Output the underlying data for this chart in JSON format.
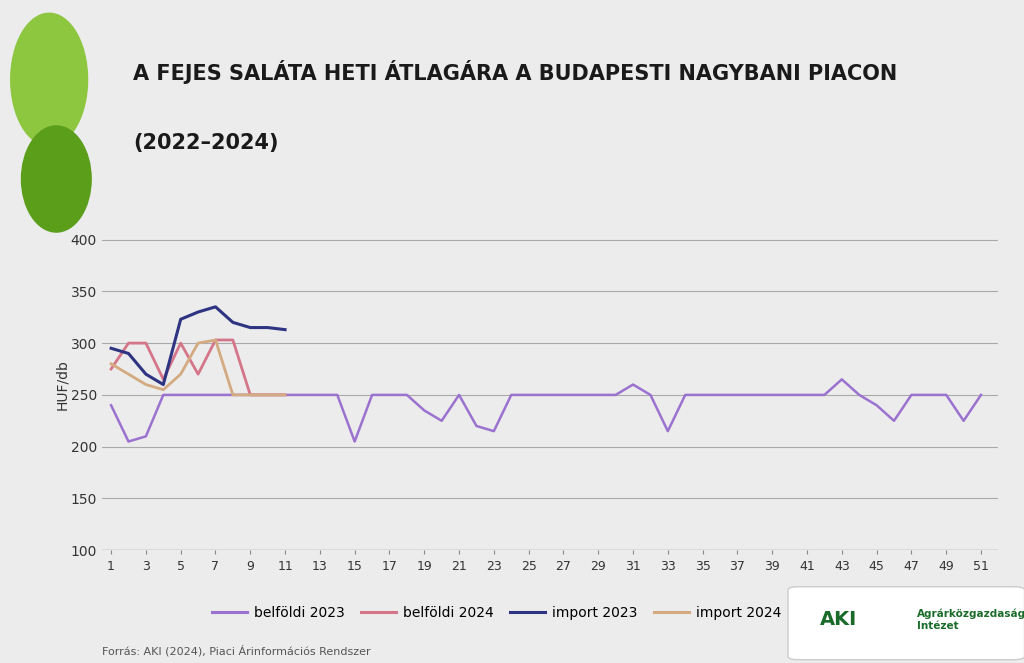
{
  "title_line1": "A FEJES SALÁTA HETI ÁTLAGÁRA A BUDAPESTI NAGYBANI PIACON",
  "title_line2": "(2022–2024)",
  "ylabel": "HUF/db",
  "source": "Forrás: AKI (2024), Piaci Árinformációs Rendszer",
  "background_color": "#ececec",
  "plot_bg_color": "#ececec",
  "accent_color": "#8dc63f",
  "circle1_color": "#8dc63f",
  "circle2_color": "#5a9e1a",
  "ylim": [
    100,
    420
  ],
  "yticks": [
    100,
    150,
    200,
    250,
    300,
    350,
    400
  ],
  "xticks": [
    1,
    3,
    5,
    7,
    9,
    11,
    13,
    15,
    17,
    19,
    21,
    23,
    25,
    27,
    29,
    31,
    33,
    35,
    37,
    39,
    41,
    43,
    45,
    47,
    49,
    51
  ],
  "series": {
    "belfoldi_2023": {
      "label": "belföldi 2023",
      "color": "#9b72cf",
      "linewidth": 1.8,
      "weeks": [
        1,
        2,
        3,
        4,
        5,
        6,
        7,
        8,
        9,
        10,
        11,
        12,
        13,
        14,
        15,
        16,
        17,
        18,
        19,
        20,
        21,
        22,
        23,
        24,
        25,
        26,
        27,
        28,
        29,
        30,
        31,
        32,
        33,
        34,
        35,
        36,
        37,
        38,
        39,
        40,
        41,
        42,
        43,
        44,
        45,
        46,
        47,
        48,
        49,
        50,
        51
      ],
      "values": [
        240,
        205,
        210,
        250,
        250,
        250,
        250,
        250,
        250,
        250,
        250,
        250,
        250,
        250,
        205,
        250,
        250,
        250,
        235,
        225,
        250,
        220,
        215,
        250,
        250,
        250,
        250,
        250,
        250,
        250,
        260,
        250,
        215,
        250,
        250,
        250,
        250,
        250,
        250,
        250,
        250,
        250,
        265,
        250,
        240,
        225,
        250,
        250,
        250,
        225,
        250
      ]
    },
    "belfoldi_2024": {
      "label": "belföldi 2024",
      "color": "#d4758a",
      "linewidth": 2.0,
      "weeks": [
        1,
        2,
        3,
        4,
        5,
        6,
        7,
        8,
        9,
        10,
        11
      ],
      "values": [
        275,
        300,
        300,
        265,
        300,
        270,
        303,
        303,
        250,
        250,
        250
      ]
    },
    "import_2023": {
      "label": "import 2023",
      "color": "#2e3382",
      "linewidth": 2.2,
      "weeks": [
        1,
        2,
        3,
        4,
        5,
        6,
        7,
        8,
        9,
        10,
        11
      ],
      "values": [
        295,
        290,
        270,
        260,
        323,
        330,
        335,
        320,
        315,
        315,
        313
      ]
    },
    "import_2024": {
      "label": "import 2024",
      "color": "#d4aa80",
      "linewidth": 2.0,
      "weeks": [
        1,
        2,
        3,
        4,
        5,
        6,
        7,
        8,
        9,
        10,
        11
      ],
      "values": [
        280,
        270,
        260,
        255,
        270,
        300,
        303,
        250,
        250,
        250,
        250
      ]
    }
  },
  "legend_entries": [
    "belföldi 2023",
    "belföldi 2024",
    "import 2023",
    "import 2024"
  ],
  "legend_colors": [
    "#9b72cf",
    "#d4758a",
    "#2e3382",
    "#d4aa80"
  ]
}
